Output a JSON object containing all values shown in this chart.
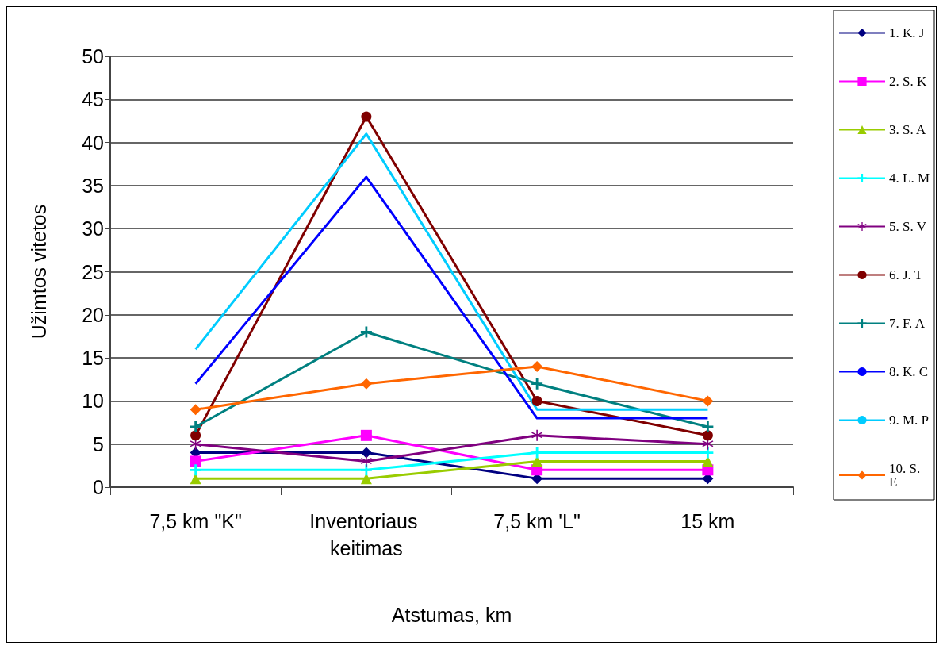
{
  "chart_data": {
    "type": "line",
    "xlabel": "Atstumas, km",
    "ylabel": "Užimtos vitetos",
    "categories": [
      "7,5 km \"K\"",
      "Inventoriaus keitimas",
      "7,5 km 'L\"",
      "15 km"
    ],
    "ylim": [
      0,
      50
    ],
    "yticks": [
      0,
      5,
      10,
      15,
      20,
      25,
      30,
      35,
      40,
      45,
      50
    ],
    "grid": "y",
    "legend": "right",
    "series": [
      {
        "name": "1. K. J",
        "color": "#000080",
        "marker": "diamond",
        "values": [
          4,
          4,
          1,
          1
        ]
      },
      {
        "name": "2. S. K",
        "color": "#ff00ff",
        "marker": "square",
        "values": [
          3,
          6,
          2,
          2
        ]
      },
      {
        "name": "3. S. A",
        "color": "#99cc00",
        "marker": "triangle",
        "values": [
          1,
          1,
          3,
          3
        ]
      },
      {
        "name": "4. L. M",
        "color": "#00ffff",
        "marker": "cross",
        "values": [
          2,
          2,
          4,
          4
        ]
      },
      {
        "name": "5. S. V",
        "color": "#800080",
        "marker": "star",
        "values": [
          5,
          3,
          6,
          5
        ]
      },
      {
        "name": "6. J. T",
        "color": "#800000",
        "marker": "circle",
        "values": [
          6,
          43,
          10,
          6
        ]
      },
      {
        "name": "7. F. A",
        "color": "#008080",
        "marker": "cross",
        "values": [
          7,
          18,
          12,
          7
        ]
      },
      {
        "name": "8. K. C",
        "color": "#0000ff",
        "marker": "none",
        "values": [
          12,
          36,
          8,
          8
        ]
      },
      {
        "name": "9. M. P",
        "color": "#00ccff",
        "marker": "none",
        "values": [
          16,
          41,
          9,
          9
        ]
      },
      {
        "name": "10. S. E",
        "color": "#ff6600",
        "marker": "diamond",
        "values": [
          9,
          12,
          14,
          10
        ]
      }
    ]
  }
}
